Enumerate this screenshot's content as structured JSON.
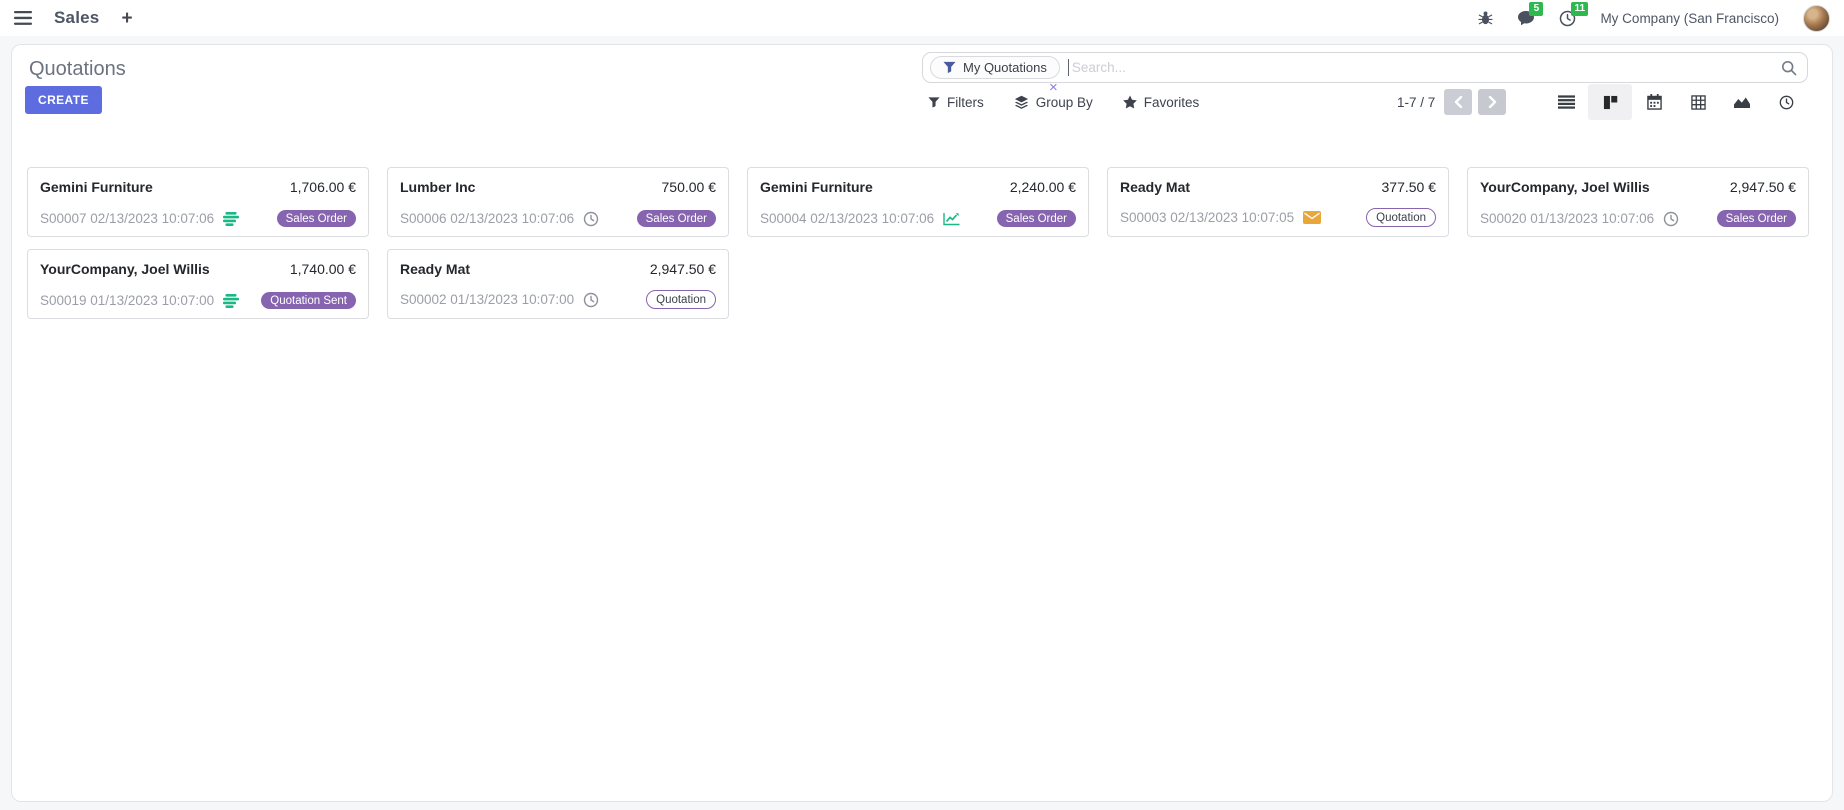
{
  "navbar": {
    "app_name": "Sales",
    "new_tab": "+",
    "messages_badge": "5",
    "activities_badge": "11",
    "company_name": "My Company (San Francisco)"
  },
  "control_panel": {
    "title": "Quotations",
    "create_button": "CREATE",
    "filters_button": "Filters",
    "group_by_button": "Group By",
    "favorites_button": "Favorites",
    "pager": "1-7 / 7"
  },
  "search": {
    "facet_label": "My Quotations",
    "facet_remove": "×",
    "placeholder": "Search..."
  },
  "views": {
    "active": "kanban",
    "options": [
      "list",
      "kanban",
      "calendar",
      "pivot",
      "graph",
      "activity"
    ]
  },
  "cards": [
    {
      "partner": "Gemini Furniture",
      "amount": "1,706.00 €",
      "reference": "S00007 02/13/2023 10:07:06",
      "activity_icon": "tasks",
      "badge": {
        "label": "Sales Order",
        "variant": "filled"
      }
    },
    {
      "partner": "Lumber Inc",
      "amount": "750.00 €",
      "reference": "S00006 02/13/2023 10:07:06",
      "activity_icon": "clock",
      "badge": {
        "label": "Sales Order",
        "variant": "filled"
      }
    },
    {
      "partner": "Gemini Furniture",
      "amount": "2,240.00 €",
      "reference": "S00004 02/13/2023 10:07:06",
      "activity_icon": "chart",
      "badge": {
        "label": "Sales Order",
        "variant": "filled"
      }
    },
    {
      "partner": "Ready Mat",
      "amount": "377.50 €",
      "reference": "S00003 02/13/2023 10:07:05",
      "activity_icon": "envelope",
      "badge": {
        "label": "Quotation",
        "variant": "outline"
      }
    },
    {
      "partner": "YourCompany, Joel Willis",
      "amount": "2,947.50 €",
      "reference": "S00020 01/13/2023 10:07:06",
      "activity_icon": "clock",
      "badge": {
        "label": "Sales Order",
        "variant": "filled"
      }
    },
    {
      "partner": "YourCompany, Joel Willis",
      "amount": "1,740.00 €",
      "reference": "S00019 01/13/2023 10:07:00",
      "activity_icon": "tasks",
      "badge": {
        "label": "Quotation Sent",
        "variant": "filled"
      }
    },
    {
      "partner": "Ready Mat",
      "amount": "2,947.50 €",
      "reference": "S00002 01/13/2023 10:07:00",
      "activity_icon": "clock",
      "badge": {
        "label": "Quotation",
        "variant": "outline"
      }
    }
  ],
  "colors": {
    "primary": "#5d6cde",
    "badge_purple": "#8764af",
    "activity_green": "#1ab884",
    "activity_orange": "#e9a63b",
    "counter_green": "#2eb84e"
  }
}
